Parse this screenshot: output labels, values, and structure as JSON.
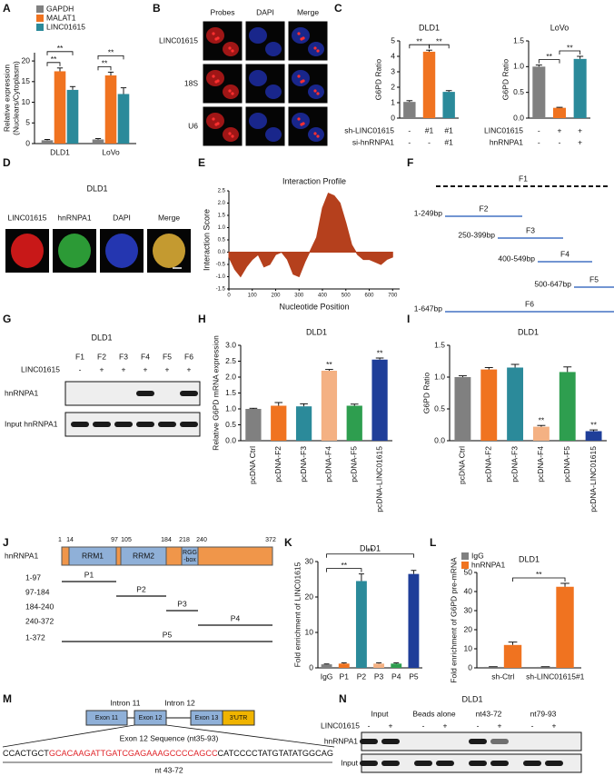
{
  "panel_labels": [
    "A",
    "B",
    "C",
    "D",
    "E",
    "F",
    "G",
    "H",
    "I",
    "J",
    "K",
    "L",
    "M",
    "N"
  ],
  "chart_data": [
    {
      "type": "bar",
      "ylabel": [
        "Relative expression",
        "(Nuclears/Cytoplasm)"
      ],
      "categories": [
        "DLD1",
        "LoVo"
      ],
      "series": [
        {
          "name": "GAPDH",
          "color": "#808080",
          "values": [
            0.8,
            1.0
          ],
          "errors": [
            0.2,
            0.2
          ]
        },
        {
          "name": "MALAT1",
          "color": "#f07320",
          "values": [
            17.5,
            16.5
          ],
          "errors": [
            0.8,
            0.8
          ]
        },
        {
          "name": "LINC01615",
          "color": "#2b8a9a",
          "values": [
            13,
            12
          ],
          "errors": [
            0.8,
            1.5
          ]
        }
      ],
      "ylim": [
        0,
        22
      ],
      "yticks": [
        0,
        5,
        10,
        15,
        20
      ],
      "annotations": [
        "**",
        "**",
        "**",
        "**"
      ]
    },
    {
      "type": "bar",
      "title": "DLD1",
      "ylabel": "G6PD Ratio",
      "categories": [
        null,
        null,
        null
      ],
      "values": [
        1.05,
        4.3,
        1.7
      ],
      "errors": [
        0.08,
        0.1,
        0.08
      ],
      "colors": [
        "#808080",
        "#f07320",
        "#2b8a9a"
      ],
      "ylim": [
        0,
        5
      ],
      "yticks": [
        0,
        1,
        2,
        3,
        4,
        5
      ],
      "table": [
        {
          "label": "sh-LINC01615",
          "cells": [
            "-",
            "#1",
            "#1"
          ]
        },
        {
          "label": "si-hnRNPA1",
          "cells": [
            "-",
            "-",
            "#1"
          ]
        }
      ],
      "annotations": [
        "**",
        "**"
      ]
    },
    {
      "type": "bar",
      "title": "LoVo",
      "ylabel": "G6PD Ratio",
      "categories": [
        null,
        null,
        null
      ],
      "values": [
        1.0,
        0.2,
        1.15
      ],
      "errors": [
        0.03,
        0.01,
        0.05
      ],
      "colors": [
        "#808080",
        "#f07320",
        "#2b8a9a"
      ],
      "ylim": [
        0,
        1.5
      ],
      "yticks": [
        {
          "value": 0,
          "label": "0.0"
        },
        0.5,
        {
          "value": 1,
          "label": "1.0"
        },
        1.5
      ],
      "table": [
        {
          "label": "LINC01615",
          "cells": [
            "-",
            "+",
            "+"
          ]
        },
        {
          "label": "hnRNPA1",
          "cells": [
            "-",
            "-",
            "+"
          ]
        }
      ],
      "annotations": [
        "**",
        "**"
      ]
    },
    {
      "type": "area",
      "title": "Interaction Profile",
      "xlabel": "Nucleotide Position",
      "ylabel": "Interaction Score",
      "color": "#b5401d",
      "x": [
        0,
        25,
        50,
        75,
        100,
        125,
        150,
        175,
        200,
        225,
        250,
        275,
        300,
        325,
        350,
        375,
        400,
        425,
        450,
        475,
        500,
        525,
        550,
        575,
        600,
        625,
        650,
        675,
        700
      ],
      "values": [
        -0.2,
        -0.7,
        -1.0,
        -0.6,
        -0.3,
        -0.1,
        -0.6,
        -0.5,
        -0.1,
        0.0,
        -0.3,
        -0.9,
        -1.0,
        -0.4,
        0.1,
        0.6,
        1.8,
        2.4,
        2.3,
        2.0,
        1.2,
        0.3,
        -0.1,
        -0.3,
        -0.3,
        -0.4,
        -0.5,
        -0.3,
        -0.2
      ],
      "xlim": [
        0,
        730
      ],
      "xticks": [
        0,
        100,
        200,
        300,
        400,
        500,
        600,
        700
      ],
      "ylim": [
        -1.5,
        2.5
      ],
      "yticks": [
        -1.5,
        {
          "value": -1,
          "label": "-1.0"
        },
        -0.5,
        {
          "value": 0,
          "label": "0.0"
        },
        0.5,
        {
          "value": 1,
          "label": "1.0"
        },
        1.5,
        {
          "value": 2,
          "label": "2.0"
        },
        2.5
      ]
    },
    {
      "type": "bar",
      "title": "DLD1",
      "ylabel": "Relative G6PD mRNA expression",
      "categories": [
        "pcDNA Ctrl",
        "pcDNA-F2",
        "pcDNA-F3",
        "pcDNA-F4",
        "pcDNA-F5",
        "pcDNA-LINC01615"
      ],
      "values": [
        1.0,
        1.1,
        1.08,
        2.2,
        1.1,
        2.55
      ],
      "errors": [
        0.02,
        0.1,
        0.08,
        0.04,
        0.05,
        0.05
      ],
      "colors": [
        "#808080",
        "#f07320",
        "#2b8a9a",
        "#f4b183",
        "#2e9e4f",
        "#1f3e99"
      ],
      "xtick_rotation": -90,
      "ylim": [
        0,
        3
      ],
      "yticks": [
        {
          "value": 0,
          "label": "0.0"
        },
        0.5,
        {
          "value": 1,
          "label": "1.0"
        },
        1.5,
        {
          "value": 2,
          "label": "2.0"
        },
        2.5,
        {
          "value": 3,
          "label": "3.0"
        }
      ],
      "annotations": [
        "**",
        "**"
      ]
    },
    {
      "type": "bar",
      "title": "DLD1",
      "ylabel": "G6PD Ratio",
      "categories": [
        "pcDNA Ctrl",
        "pcDNA-F2",
        "pcDNA-F3",
        "pcDNA-F4",
        "pcDNA-F5",
        "pcDNA-LINC01615"
      ],
      "values": [
        1.0,
        1.12,
        1.15,
        0.22,
        1.08,
        0.15
      ],
      "errors": [
        0.02,
        0.03,
        0.05,
        0.02,
        0.08,
        0.02
      ],
      "colors": [
        "#808080",
        "#f07320",
        "#2b8a9a",
        "#f4b183",
        "#2e9e4f",
        "#1f3e99"
      ],
      "xtick_rotation": -90,
      "ylim": [
        0,
        1.5
      ],
      "yticks": [
        {
          "value": 0,
          "label": "0.0"
        },
        0.5,
        {
          "value": 1,
          "label": "1.0"
        },
        1.5
      ],
      "annotations": [
        "**",
        "**"
      ]
    },
    {
      "type": "bar",
      "title": "DLD1",
      "ylabel": "Fold enrichment of LINC01615",
      "categories": [
        "IgG",
        "P1",
        "P2",
        "P3",
        "P4",
        "P5"
      ],
      "values": [
        1.0,
        1.2,
        24.5,
        1.2,
        1.2,
        26.5
      ],
      "errors": [
        0.1,
        0.2,
        2.0,
        0.2,
        0.2,
        1.0
      ],
      "colors": [
        "#808080",
        "#f07320",
        "#2b8a9a",
        "#f4b183",
        "#2e9e4f",
        "#1f3e99"
      ],
      "ylim": [
        0,
        30
      ],
      "yticks": [
        0,
        10,
        20,
        30
      ],
      "annotations": [
        "**",
        "**"
      ]
    },
    {
      "type": "bar",
      "title": "DLD1",
      "ylabel": "Fold enrichment of G6PD pre-mRNA",
      "categories": [
        "sh-Ctrl",
        "sh-LINC01615#1"
      ],
      "series": [
        {
          "name": "IgG",
          "color": "#808080",
          "values": [
            0.5,
            0.5
          ],
          "errors": [
            0.1,
            0.1
          ]
        },
        {
          "name": "hnRNPA1",
          "color": "#f07320",
          "values": [
            12,
            42.5
          ],
          "errors": [
            1.5,
            1.8
          ]
        }
      ],
      "ylim": [
        0,
        50
      ],
      "yticks": [
        0,
        10,
        20,
        30,
        40,
        50
      ],
      "annotations": [
        "**"
      ]
    }
  ],
  "panel_b": {
    "columns": [
      "Probes",
      "DAPI",
      "Merge"
    ],
    "rows": [
      "LINC01615",
      "18S",
      "U6"
    ]
  },
  "panel_d": {
    "title": "DLD1",
    "columns": [
      "LINC01615",
      "hnRNPA1",
      "DAPI",
      "Merge"
    ]
  },
  "panel_f": {
    "fragments": [
      {
        "name": "F1"
      },
      {
        "name": "F2",
        "range": "1-249bp"
      },
      {
        "name": "F3",
        "range": "250-399bp"
      },
      {
        "name": "F4",
        "range": "400-549bp"
      },
      {
        "name": "F5",
        "range": "500-647bp"
      },
      {
        "name": "F6",
        "range": "1-647bp"
      }
    ]
  },
  "panel_g": {
    "title": "DLD1",
    "lanes": [
      "F1",
      "F2",
      "F3",
      "F4",
      "F5",
      "F6"
    ],
    "row_label": "LINC01615",
    "row": [
      "-",
      "+",
      "+",
      "+",
      "+",
      "+"
    ],
    "blots": [
      "hnRNPA1",
      "Input hnRNPA1"
    ]
  },
  "panel_j": {
    "protein": "hnRNPA1",
    "positions": [
      "1",
      "14",
      "97",
      "105",
      "184",
      "218",
      "240",
      "372"
    ],
    "domains": [
      [
        "RRM1"
      ],
      [
        "RRM2"
      ],
      [
        "RGG",
        "-box"
      ]
    ],
    "fragments": [
      {
        "name": "P1",
        "range": "1-97"
      },
      {
        "name": "P2",
        "range": "97-184"
      },
      {
        "name": "P3",
        "range": "184-240"
      },
      {
        "name": "P4",
        "range": "240-372"
      },
      {
        "name": "P5",
        "range": "1-372"
      }
    ]
  },
  "panel_m": {
    "introns": [
      "Intron 11",
      "Intron 12"
    ],
    "exons": [
      "Exon 11",
      "Exon 12",
      "Exon 13",
      "3'UTR"
    ],
    "caption": "Exon 12 Sequence (nt35-93)",
    "sequence": [
      "CCACTGCT",
      "GCACAAGATTGATCGAGAAAGCCCCAGCC",
      "CATCCCCTATGTATATGGCAG"
    ],
    "footnote": "nt 43-72"
  },
  "panel_n": {
    "title": "DLD1",
    "groups": [
      "Input",
      "Beads alone",
      "nt43-72",
      "nt79-93"
    ],
    "row_label": "LINC01615",
    "row": [
      "-",
      "+",
      "-",
      "+",
      "-",
      "+",
      "-",
      "+"
    ],
    "blots": [
      "hnRNPA1",
      "Input"
    ]
  }
}
